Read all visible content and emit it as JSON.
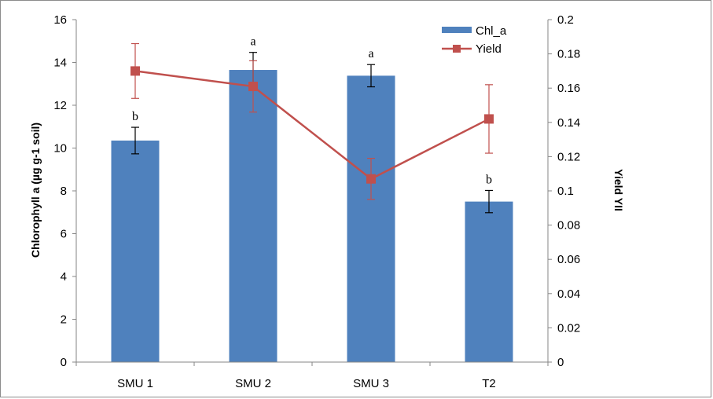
{
  "chart_data": {
    "type": "bar",
    "categories": [
      "SMU 1",
      "SMU 2",
      "SMU 3",
      "T2"
    ],
    "series": [
      {
        "name": "Chl_a",
        "type": "bar",
        "axis": "left",
        "values": [
          10.35,
          13.65,
          13.38,
          7.5
        ],
        "error": [
          0.62,
          0.82,
          0.52,
          0.52
        ],
        "color": "#4f81bd"
      },
      {
        "name": "Yield",
        "type": "line",
        "axis": "right",
        "values": [
          0.17,
          0.161,
          0.107,
          0.142
        ],
        "error": [
          0.016,
          0.015,
          0.012,
          0.02
        ],
        "color": "#c0504d"
      }
    ],
    "annotations": [
      "b",
      "a",
      "a",
      "b"
    ],
    "ylabel": "Chlorophyll a (µg g-1 soil)",
    "y2label": "Yield YII",
    "ylim": [
      0,
      16
    ],
    "y2lim": [
      0,
      0.2
    ],
    "yticks": [
      "0",
      "2",
      "4",
      "6",
      "8",
      "10",
      "12",
      "14",
      "16"
    ],
    "y2ticks": [
      "0",
      "0.02",
      "0.04",
      "0.06",
      "0.08",
      "0.1",
      "0.12",
      "0.14",
      "0.16",
      "0.18",
      "0.2"
    ],
    "grid": false,
    "legend": "top-right"
  }
}
